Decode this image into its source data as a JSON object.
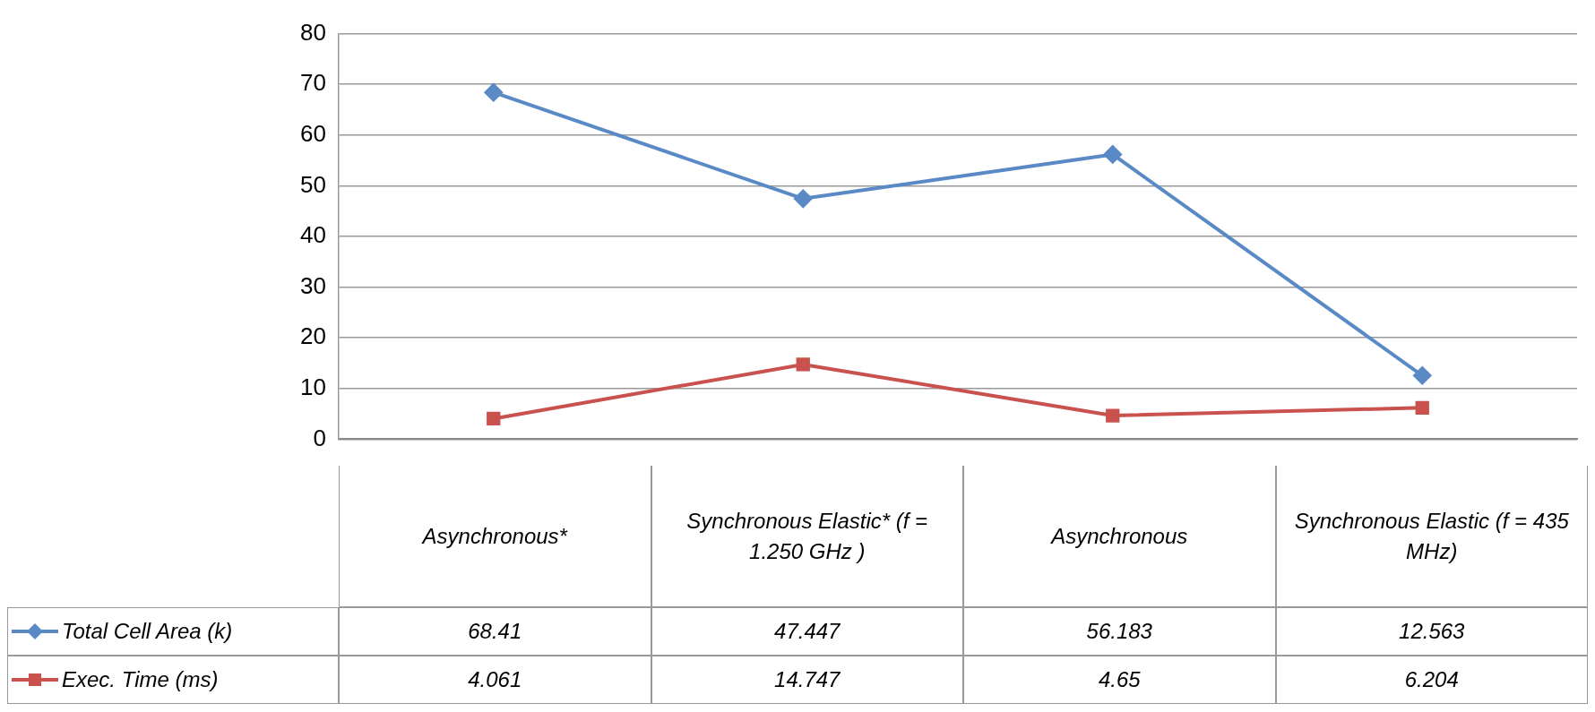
{
  "chart_data": {
    "type": "line",
    "categories": [
      "Asynchronous*",
      "Synchronous Elastic* (f = 1.250 GHz )",
      "Asynchronous",
      "Synchronous Elastic (f = 435 MHz)"
    ],
    "series": [
      {
        "name": "Total Cell Area (k)",
        "color": "#5a8ac6",
        "marker": "diamond",
        "values": [
          68.41,
          47.447,
          56.183,
          12.563
        ]
      },
      {
        "name": "Exec. Time (ms)",
        "color": "#c9514e",
        "marker": "square",
        "values": [
          4.061,
          14.747,
          4.65,
          6.204
        ]
      }
    ],
    "ylim": [
      0,
      80
    ],
    "yticks": [
      0,
      10,
      20,
      30,
      40,
      50,
      60,
      70,
      80
    ],
    "grid": "y",
    "legend": "bottom left",
    "data_labels": true
  }
}
